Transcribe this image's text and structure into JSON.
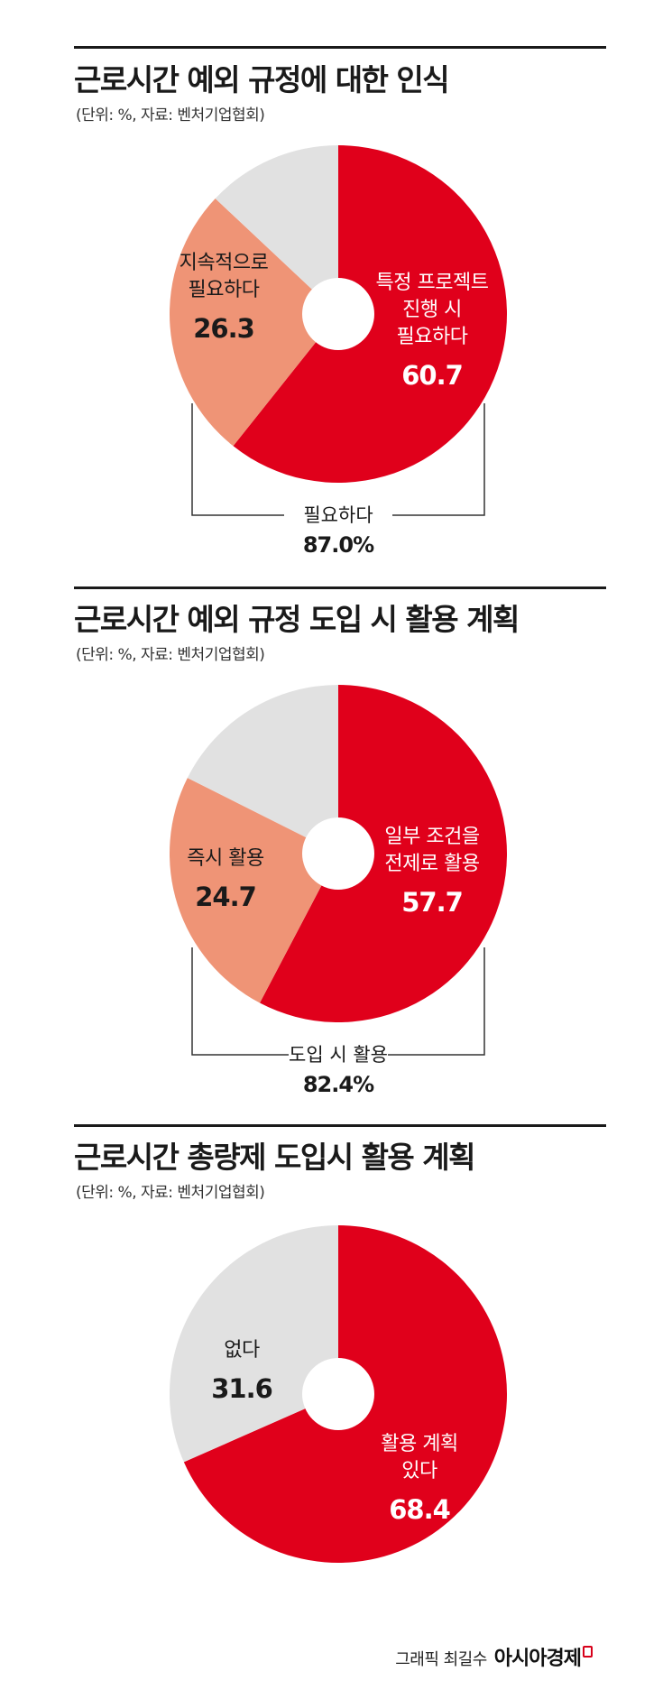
{
  "colors": {
    "main": "#e0001b",
    "secondary": "#ef9476",
    "rest": "#e1e1e1",
    "hole": "#ffffff"
  },
  "sections": [
    {
      "title": "근로시간 예외 규정에 대한 인식",
      "source": "(단위: %, 자료: 벤처기업협회)",
      "bracket_label": "필요하다",
      "bracket_value": "87.0%"
    },
    {
      "title": "근로시간 예외 규정 도입 시 활용 계획",
      "source": "(단위: %, 자료: 벤처기업협회)",
      "bracket_label": "도입 시 활용",
      "bracket_value": "82.4%"
    },
    {
      "title": "근로시간 총량제 도입시 활용 계획",
      "source": "(단위: %, 자료: 벤처기업협회)"
    }
  ],
  "chart_data": [
    {
      "type": "pie",
      "title": "근로시간 예외 규정에 대한 인식",
      "slices": [
        {
          "label": "특정 프로젝트 진행 시 필요하다",
          "label_lines": [
            "특정 프로젝트",
            "진행 시",
            "필요하다"
          ],
          "value": 60.7,
          "value_text": "60.7",
          "color": "#e0001b",
          "text_color": "#ffffff"
        },
        {
          "label": "지속적으로 필요하다",
          "label_lines": [
            "지속적으로",
            "필요하다"
          ],
          "value": 26.3,
          "value_text": "26.3",
          "color": "#ef9476",
          "text_color": "#1a1a1a"
        },
        {
          "label": "",
          "label_lines": [],
          "value": 13.0,
          "value_text": "",
          "color": "#e1e1e1",
          "text_color": "#1a1a1a"
        }
      ]
    },
    {
      "type": "pie",
      "title": "근로시간 예외 규정 도입 시 활용 계획",
      "slices": [
        {
          "label": "일부 조건을 전제로 활용",
          "label_lines": [
            "일부 조건을",
            "전제로 활용"
          ],
          "value": 57.7,
          "value_text": "57.7",
          "color": "#e0001b",
          "text_color": "#ffffff"
        },
        {
          "label": "즉시 활용",
          "label_lines": [
            "즉시 활용"
          ],
          "value": 24.7,
          "value_text": "24.7",
          "color": "#ef9476",
          "text_color": "#1a1a1a"
        },
        {
          "label": "",
          "label_lines": [],
          "value": 17.6,
          "value_text": "",
          "color": "#e1e1e1",
          "text_color": "#1a1a1a"
        }
      ]
    },
    {
      "type": "pie",
      "title": "근로시간 총량제 도입시 활용 계획",
      "slices": [
        {
          "label": "활용 계획 있다",
          "label_lines": [
            "활용 계획",
            "있다"
          ],
          "value": 68.4,
          "value_text": "68.4",
          "color": "#e0001b",
          "text_color": "#ffffff"
        },
        {
          "label": "없다",
          "label_lines": [
            "없다"
          ],
          "value": 31.6,
          "value_text": "31.6",
          "color": "#e1e1e1",
          "text_color": "#1a1a1a"
        }
      ]
    }
  ],
  "credit": {
    "label": "그래픽 최길수",
    "brand": "아시아경제"
  }
}
